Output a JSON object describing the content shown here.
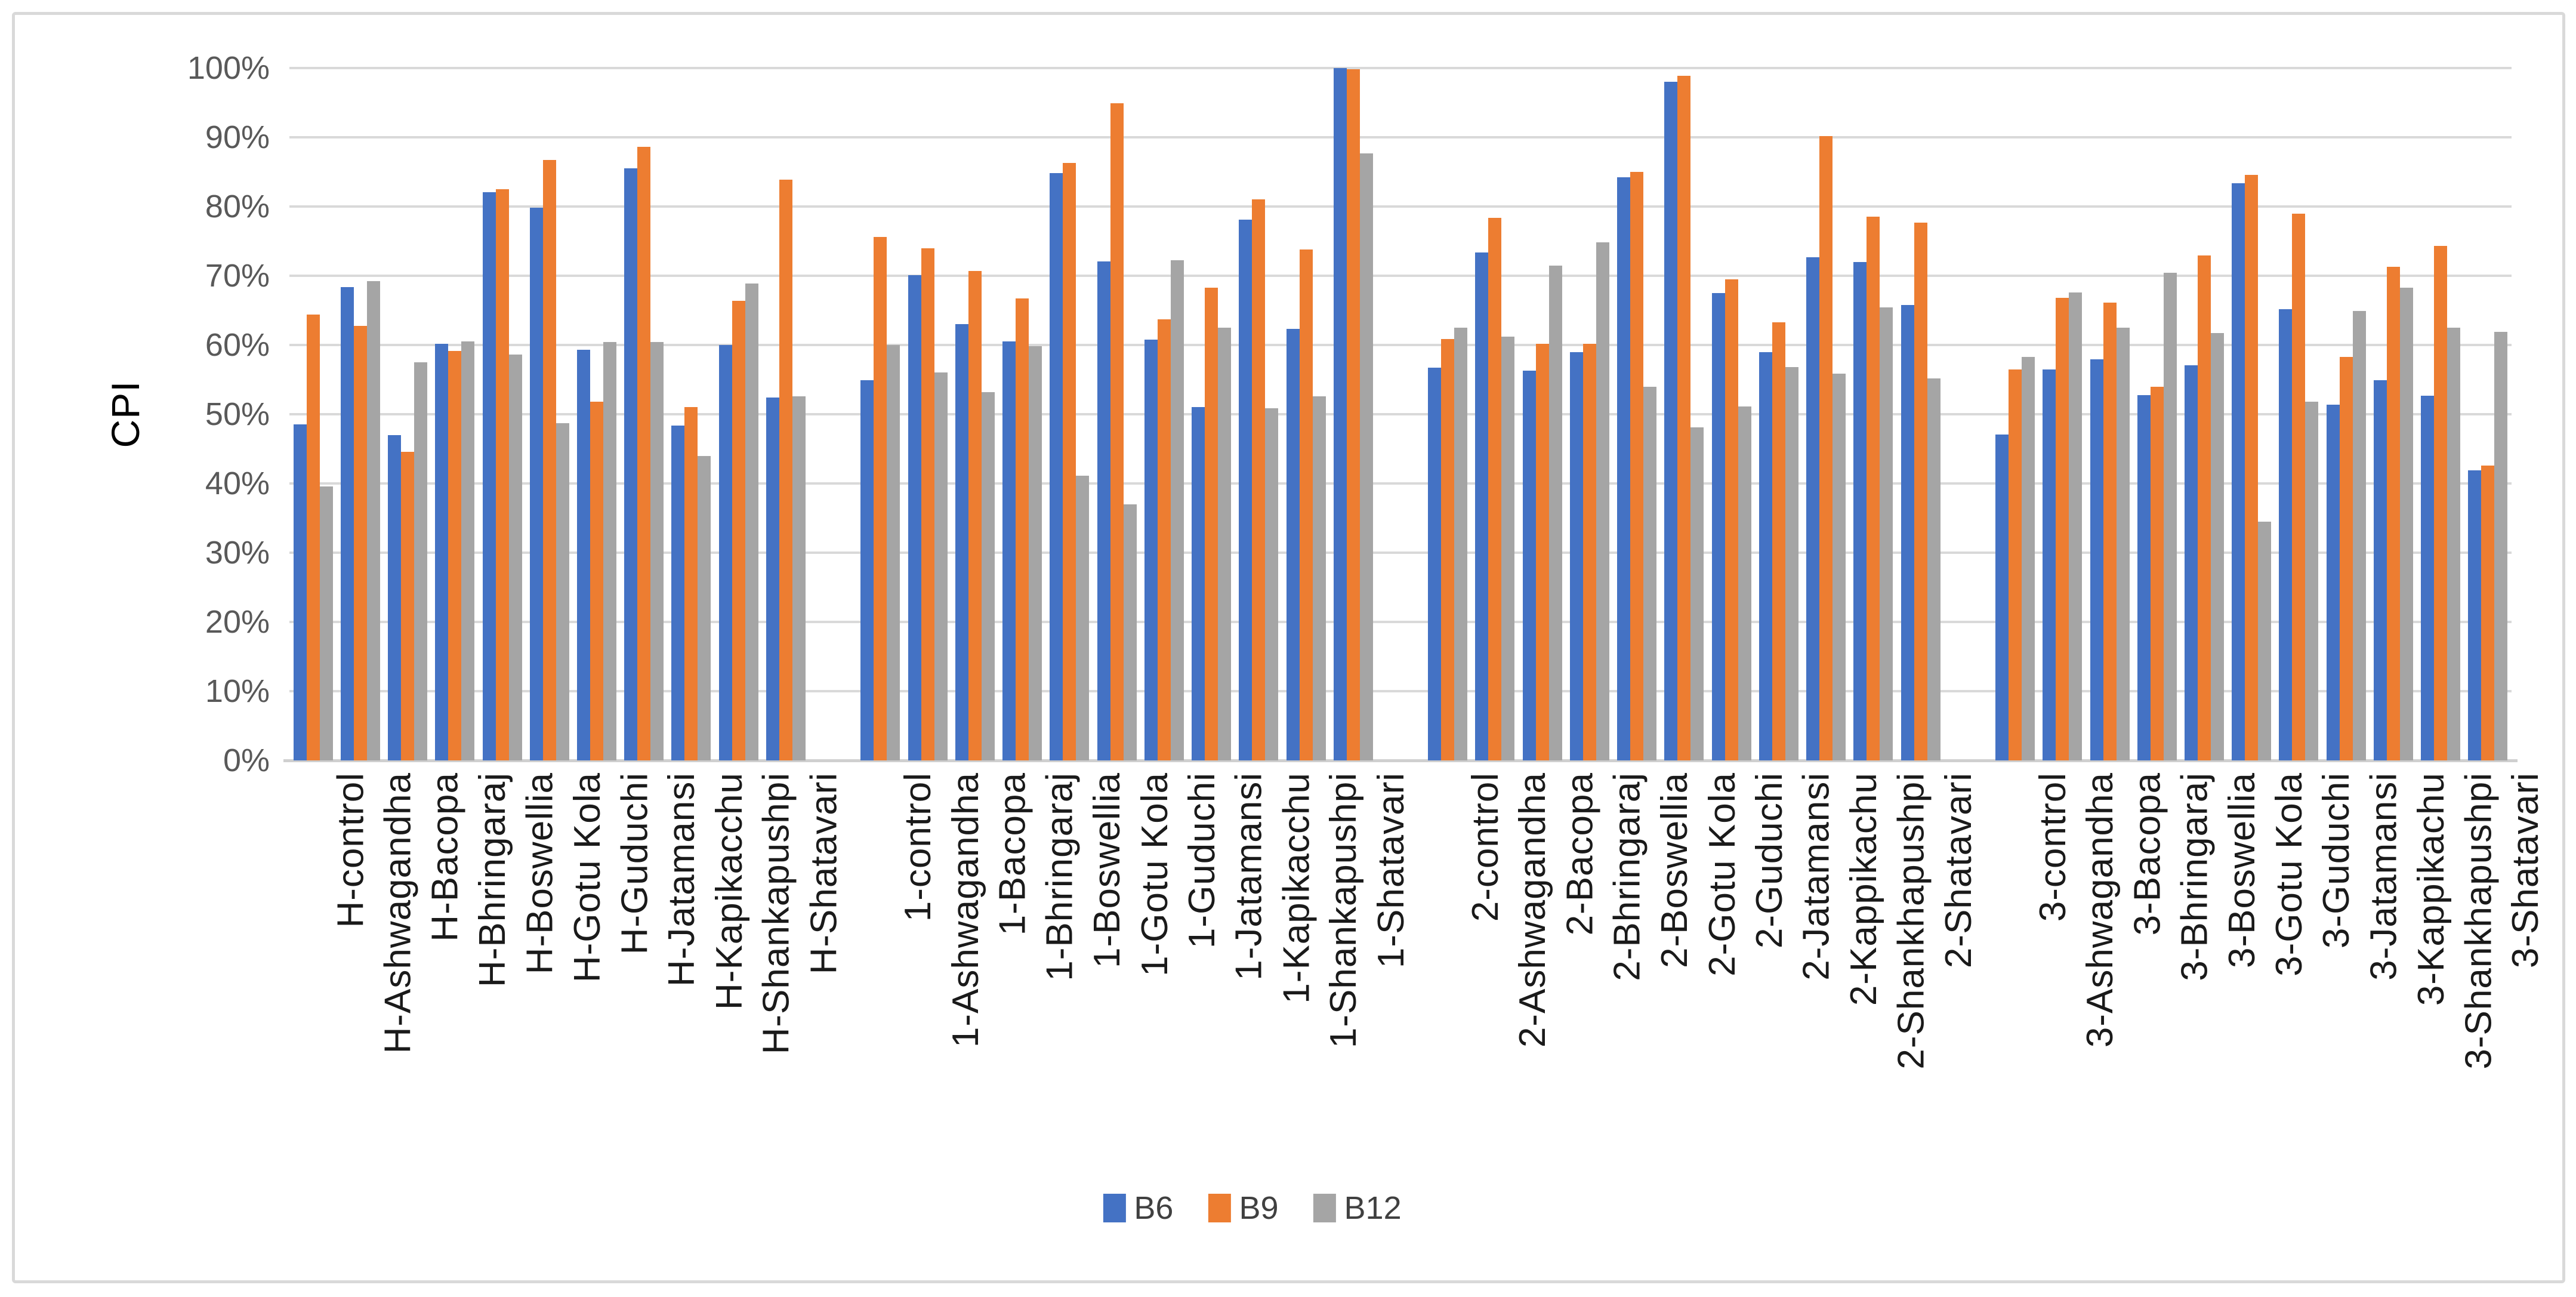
{
  "chart_data": {
    "type": "bar",
    "title": "",
    "xlabel": "",
    "ylabel": "CPI",
    "ylim": [
      0,
      100
    ],
    "grid": true,
    "legend_position": "bottom-center",
    "y_tick_labels": [
      "0%",
      "10%",
      "20%",
      "30%",
      "40%",
      "50%",
      "60%",
      "70%",
      "80%",
      "90%",
      "100%"
    ],
    "series": [
      {
        "name": "B6",
        "color": "#4472C4"
      },
      {
        "name": "B9",
        "color": "#ED7D31"
      },
      {
        "name": "B12",
        "color": "#A5A5A5"
      }
    ],
    "groups": [
      {
        "categories": [
          "H-control",
          "H-Ashwagandha",
          "H-Bacopa",
          "H-Bhringaraj",
          "H-Boswellia",
          "H-Gotu Kola",
          "H-Guduchi",
          "H-Jatamansi",
          "H-Kapikacchu",
          "H-Shankapushpi",
          "H-Shatavari"
        ],
        "values": {
          "B6": [
            48.5,
            68.4,
            47.0,
            60.2,
            82.1,
            79.8,
            59.3,
            85.5,
            48.4,
            60.0,
            52.4
          ],
          "B9": [
            64.4,
            62.8,
            44.6,
            59.1,
            82.5,
            86.7,
            51.8,
            88.6,
            51.0,
            66.4,
            83.9
          ],
          "B12": [
            39.6,
            69.2,
            57.5,
            60.5,
            58.6,
            48.7,
            60.4,
            60.4,
            44.0,
            68.9,
            52.6
          ]
        }
      },
      {
        "categories": [
          "1-control",
          "1-Ashwagandha",
          "1-Bacopa",
          "1-Bhringaraj",
          "1-Boswellia",
          "1-Gotu Kola",
          "1-Guduchi",
          "1-Jatamansi",
          "1-Kapikacchu",
          "1-Shankapushpi",
          "1-Shatavari"
        ],
        "values": {
          "B6": [
            54.9,
            70.1,
            63.0,
            60.5,
            84.8,
            72.1,
            60.8,
            51.0,
            78.1,
            62.3,
            100.0
          ],
          "B9": [
            75.6,
            74.0,
            70.7,
            66.7,
            86.3,
            94.9,
            63.7,
            68.3,
            81.0,
            73.8,
            99.8
          ],
          "B12": [
            60.0,
            56.0,
            53.2,
            59.8,
            41.1,
            37.0,
            72.2,
            62.5,
            50.9,
            52.6,
            87.7
          ]
        }
      },
      {
        "categories": [
          "2-control",
          "2-Ashwagandha",
          "2-Bacopa",
          "2-Bhringaraj",
          "2-Boswellia",
          "2-Gotu Kola",
          "2-Guduchi",
          "2-Jatamansi",
          "2-Kappikachu",
          "2-Shankhapushpi",
          "2-Shatavari"
        ],
        "values": {
          "B6": [
            56.7,
            73.4,
            56.3,
            59.0,
            84.2,
            98.0,
            67.5,
            59.0,
            72.7,
            72.0,
            65.8
          ],
          "B9": [
            60.9,
            78.4,
            60.2,
            60.2,
            85.0,
            98.9,
            69.5,
            63.3,
            90.2,
            78.5,
            77.7
          ],
          "B12": [
            62.5,
            61.2,
            71.5,
            74.8,
            54.0,
            48.1,
            51.1,
            56.8,
            55.9,
            65.4,
            55.2
          ]
        }
      },
      {
        "categories": [
          "3-control",
          "3-Ashwagandha",
          "3-Bacopa",
          "3-Bhringaraj",
          "3-Boswellia",
          "3-Gotu Kola",
          "3-Guduchi",
          "3-Jatamansi",
          "3-Kappikachu",
          "3-Shankhapushpi",
          "3-Shatavari"
        ],
        "values": {
          "B6": [
            47.1,
            56.5,
            57.9,
            52.8,
            57.1,
            83.4,
            65.2,
            51.4,
            54.9,
            52.7,
            41.9
          ],
          "B9": [
            56.5,
            66.8,
            66.1,
            54.0,
            72.9,
            84.6,
            79.0,
            58.3,
            71.3,
            74.3,
            42.6
          ],
          "B12": [
            58.3,
            67.6,
            62.5,
            70.4,
            61.7,
            34.5,
            51.8,
            64.9,
            68.3,
            62.5,
            61.9
          ]
        }
      }
    ]
  }
}
